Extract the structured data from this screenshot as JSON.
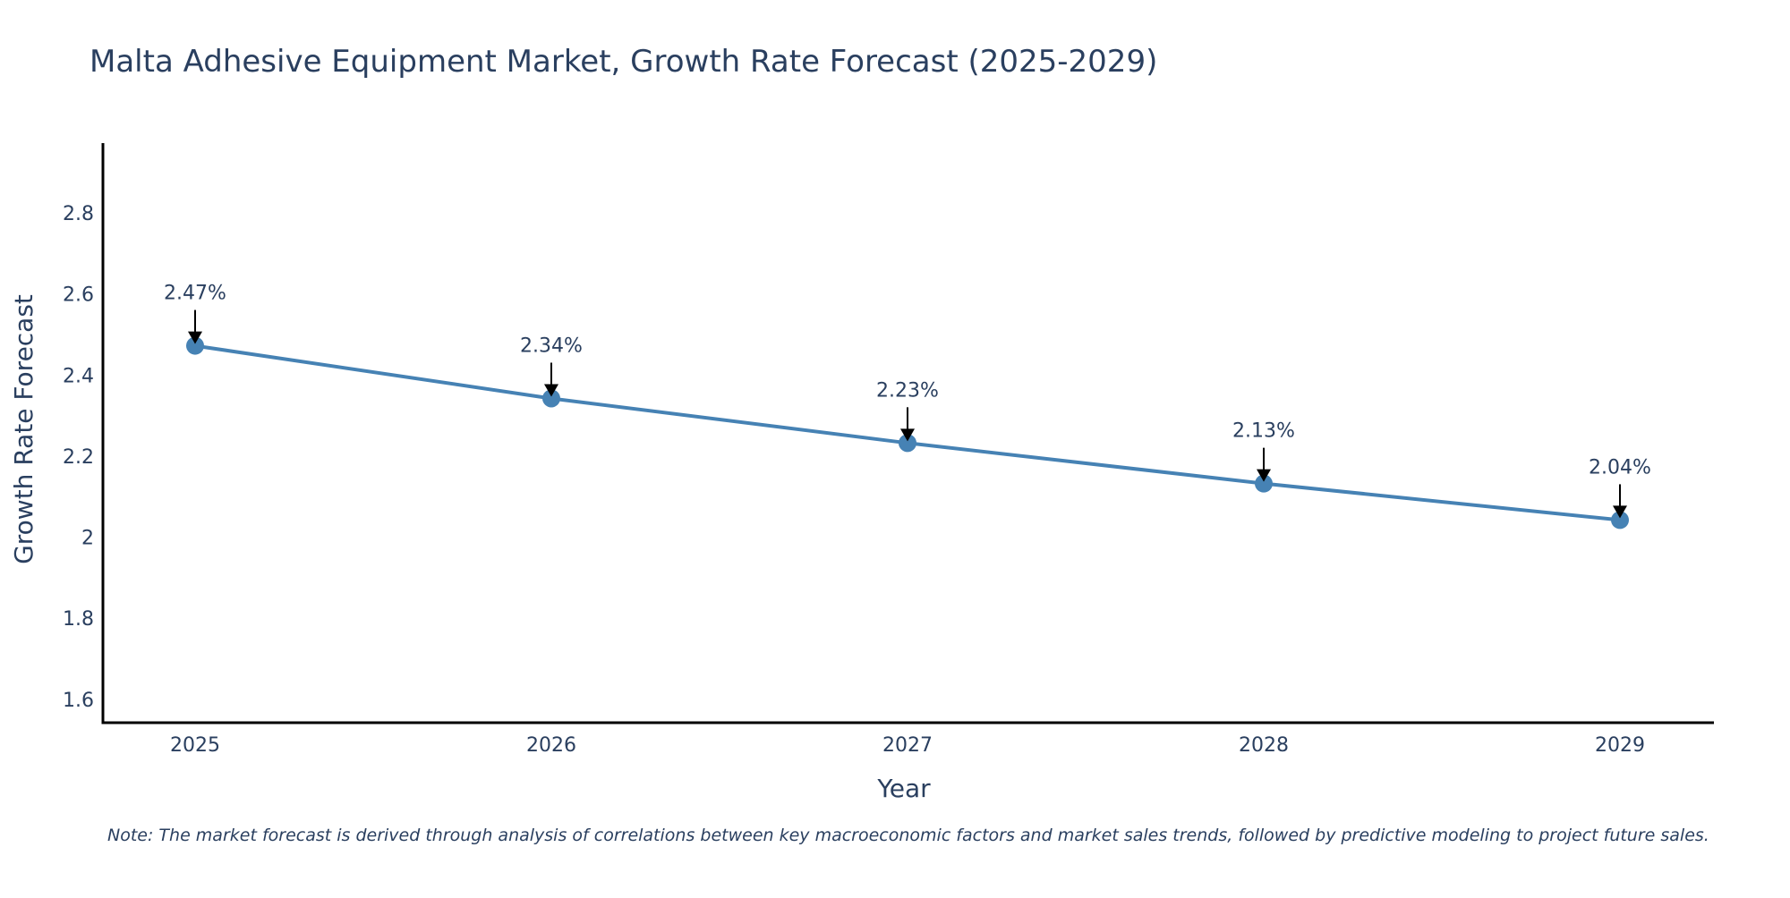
{
  "chart_data": {
    "type": "line",
    "title": "Malta Adhesive Equipment Market, Growth Rate Forecast (2025-2029)",
    "xlabel": "Year",
    "ylabel": "Growth Rate Forecast",
    "categories": [
      "2025",
      "2026",
      "2027",
      "2028",
      "2029"
    ],
    "values": [
      2.47,
      2.34,
      2.23,
      2.13,
      2.04
    ],
    "data_labels": [
      "2.47%",
      "2.34%",
      "2.23%",
      "2.13%",
      "2.04%"
    ],
    "yticks": [
      1.6,
      1.8,
      2,
      2.2,
      2.4,
      2.6,
      2.8
    ],
    "ytick_labels": [
      "1.6",
      "1.8",
      "2",
      "2.2",
      "2.4",
      "2.6",
      "2.8"
    ],
    "ylim": [
      1.54,
      2.97
    ],
    "grid": false,
    "line_color": "#4682B4",
    "text_color": "#2A3F5F",
    "note": "Note: The market forecast is derived through analysis of correlations between key macroeconomic factors and market sales trends, followed by predictive modeling to project future sales."
  }
}
